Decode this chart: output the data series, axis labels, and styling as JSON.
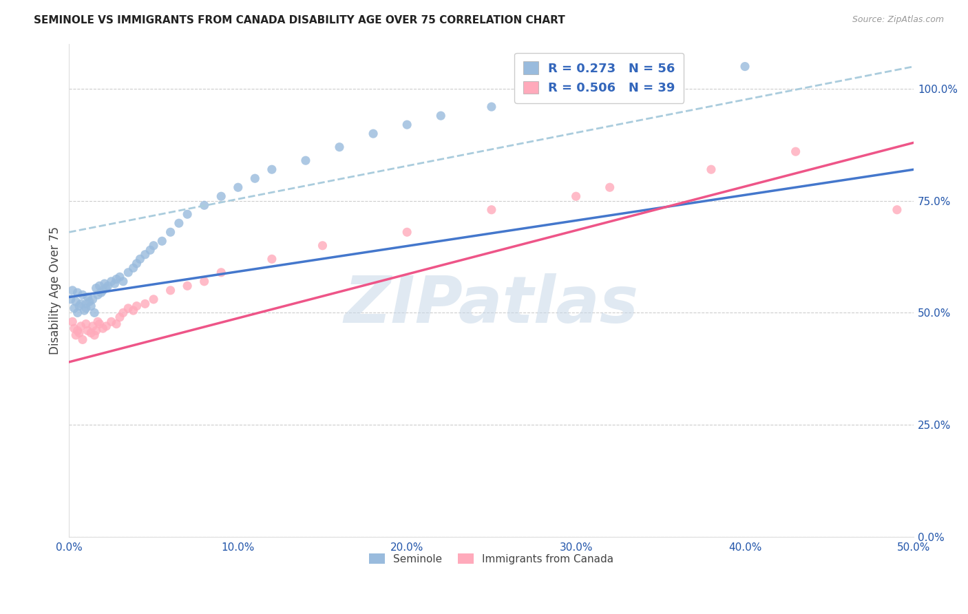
{
  "title": "SEMINOLE VS IMMIGRANTS FROM CANADA DISABILITY AGE OVER 75 CORRELATION CHART",
  "source": "Source: ZipAtlas.com",
  "ylabel": "Disability Age Over 75",
  "xlim": [
    0.0,
    0.5
  ],
  "ylim": [
    0.0,
    1.1
  ],
  "xtick_vals": [
    0.0,
    0.1,
    0.2,
    0.3,
    0.4,
    0.5
  ],
  "xticklabels": [
    "0.0%",
    "10.0%",
    "20.0%",
    "30.0%",
    "40.0%",
    "50.0%"
  ],
  "ytick_vals": [
    0.0,
    0.25,
    0.5,
    0.75,
    1.0
  ],
  "yticklabels": [
    "0.0%",
    "25.0%",
    "50.0%",
    "75.0%",
    "100.0%"
  ],
  "legend1_label": "R = 0.273   N = 56",
  "legend2_label": "R = 0.506   N = 39",
  "blue_scatter_color": "#99BBDD",
  "pink_scatter_color": "#FFAABB",
  "blue_line_color": "#4477CC",
  "pink_line_color": "#EE5588",
  "dashed_line_color": "#AACCDD",
  "watermark_color": "#C8D8E8",
  "watermark_text": "ZIPatlas",
  "bottom_legend1": "Seminole",
  "bottom_legend2": "Immigrants from Canada",
  "seminole_x": [
    0.001,
    0.002,
    0.003,
    0.004,
    0.005,
    0.005,
    0.006,
    0.007,
    0.008,
    0.009,
    0.01,
    0.01,
    0.011,
    0.012,
    0.013,
    0.014,
    0.015,
    0.016,
    0.017,
    0.018,
    0.019,
    0.02,
    0.021,
    0.022,
    0.023,
    0.025,
    0.027,
    0.028,
    0.03,
    0.032,
    0.035,
    0.038,
    0.04,
    0.042,
    0.045,
    0.048,
    0.05,
    0.055,
    0.06,
    0.065,
    0.07,
    0.08,
    0.09,
    0.1,
    0.11,
    0.12,
    0.14,
    0.16,
    0.18,
    0.2,
    0.22,
    0.25,
    0.28,
    0.31,
    0.35,
    0.4
  ],
  "seminole_y": [
    0.53,
    0.55,
    0.51,
    0.525,
    0.5,
    0.545,
    0.515,
    0.52,
    0.54,
    0.505,
    0.52,
    0.51,
    0.535,
    0.525,
    0.515,
    0.53,
    0.5,
    0.555,
    0.54,
    0.56,
    0.545,
    0.55,
    0.565,
    0.555,
    0.56,
    0.57,
    0.565,
    0.575,
    0.58,
    0.57,
    0.59,
    0.6,
    0.61,
    0.62,
    0.63,
    0.64,
    0.65,
    0.66,
    0.68,
    0.7,
    0.72,
    0.74,
    0.76,
    0.78,
    0.8,
    0.82,
    0.84,
    0.87,
    0.9,
    0.92,
    0.94,
    0.96,
    0.98,
    1.0,
    1.02,
    1.05
  ],
  "canada_x": [
    0.002,
    0.003,
    0.004,
    0.005,
    0.006,
    0.007,
    0.008,
    0.01,
    0.011,
    0.013,
    0.014,
    0.015,
    0.016,
    0.017,
    0.018,
    0.02,
    0.022,
    0.025,
    0.028,
    0.03,
    0.032,
    0.035,
    0.038,
    0.04,
    0.045,
    0.05,
    0.06,
    0.07,
    0.08,
    0.09,
    0.12,
    0.15,
    0.2,
    0.25,
    0.3,
    0.32,
    0.38,
    0.43,
    0.49
  ],
  "canada_y": [
    0.48,
    0.465,
    0.45,
    0.46,
    0.455,
    0.47,
    0.44,
    0.475,
    0.46,
    0.455,
    0.47,
    0.45,
    0.46,
    0.48,
    0.475,
    0.465,
    0.47,
    0.48,
    0.475,
    0.49,
    0.5,
    0.51,
    0.505,
    0.515,
    0.52,
    0.53,
    0.55,
    0.56,
    0.57,
    0.59,
    0.62,
    0.65,
    0.68,
    0.73,
    0.76,
    0.78,
    0.82,
    0.86,
    0.73
  ],
  "blue_line_x0": 0.0,
  "blue_line_x1": 0.5,
  "blue_line_y0": 0.535,
  "blue_line_y1": 0.82,
  "pink_line_x0": 0.0,
  "pink_line_x1": 0.5,
  "pink_line_y0": 0.39,
  "pink_line_y1": 0.88,
  "dashed_line_x0": 0.0,
  "dashed_line_x1": 0.5,
  "dashed_line_y0": 0.68,
  "dashed_line_y1": 1.05
}
